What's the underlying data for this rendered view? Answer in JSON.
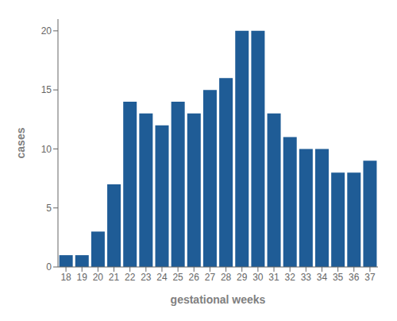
{
  "chart_data": {
    "type": "bar",
    "categories": [
      18,
      19,
      20,
      21,
      22,
      23,
      24,
      25,
      26,
      27,
      28,
      29,
      30,
      31,
      32,
      33,
      34,
      35,
      36,
      37
    ],
    "values": [
      1,
      1,
      3,
      7,
      14,
      13,
      12,
      14,
      13,
      15,
      16,
      20,
      20,
      13,
      11,
      10,
      10,
      8,
      8,
      9
    ],
    "color": "#1F5C96",
    "xlabel": "gestational weeks",
    "ylabel": "cases",
    "ylim": [
      0,
      21
    ],
    "yticks": [
      0,
      5,
      10,
      15,
      20
    ],
    "grid": false
  }
}
